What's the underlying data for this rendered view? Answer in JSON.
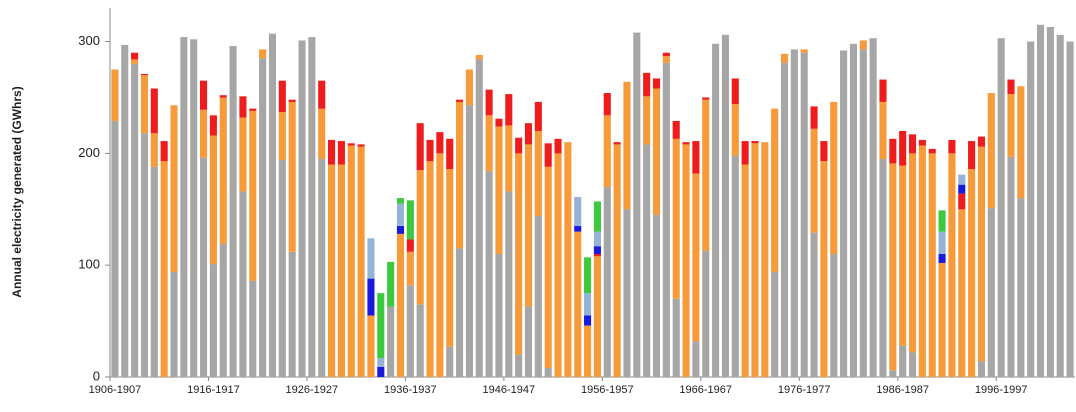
{
  "chart_data": {
    "type": "stacked_bar",
    "y_label": "Annual electricity generated (GWhrs)",
    "categories": [
      "1906-1907",
      null,
      null,
      null,
      null,
      null,
      null,
      null,
      null,
      null,
      "1916-1917",
      null,
      null,
      null,
      null,
      null,
      null,
      null,
      null,
      null,
      "1926-1927",
      null,
      null,
      null,
      null,
      null,
      null,
      null,
      null,
      null,
      "1936-1937",
      null,
      null,
      null,
      null,
      null,
      null,
      null,
      null,
      null,
      "1946-1947",
      null,
      null,
      null,
      null,
      null,
      null,
      null,
      null,
      null,
      "1956-1957",
      null,
      null,
      null,
      null,
      null,
      null,
      null,
      null,
      null,
      "1966-1967",
      null,
      null,
      null,
      null,
      null,
      null,
      null,
      null,
      null,
      "1976-1977",
      null,
      null,
      null,
      null,
      null,
      null,
      null,
      null,
      null,
      "1986-1987",
      null,
      null,
      null,
      null,
      null,
      null,
      null,
      null,
      null,
      "1996-1997",
      null,
      null,
      null,
      null,
      null,
      null,
      null
    ],
    "series": [
      {
        "color": "#a6a6a6",
        "values": [
          229,
          297,
          280,
          218,
          188,
          0,
          94,
          304,
          302,
          196,
          101,
          119,
          296,
          166,
          86,
          285,
          307,
          194,
          112,
          301,
          304,
          195,
          0,
          0,
          0,
          0,
          0,
          0,
          63,
          0,
          82,
          65,
          0,
          0,
          27,
          115,
          243,
          284,
          184,
          110,
          166,
          20,
          63,
          144,
          8,
          0,
          0,
          0,
          0,
          0,
          170,
          0,
          150,
          308,
          208,
          145,
          281,
          70,
          0,
          32,
          113,
          298,
          306,
          198,
          0,
          0,
          0,
          94,
          281,
          293,
          290,
          129,
          0,
          110,
          292,
          298,
          293,
          303,
          195,
          6,
          28,
          22,
          0,
          0,
          0,
          0,
          0,
          0,
          14,
          151,
          303,
          197,
          160,
          300,
          315,
          313,
          306,
          300
        ]
      },
      {
        "color": "#f79a3a",
        "values": [
          46,
          0,
          4,
          52,
          30,
          193,
          149,
          0,
          0,
          43,
          115,
          131,
          0,
          66,
          152,
          8,
          0,
          43,
          134,
          0,
          0,
          45,
          190,
          190,
          207,
          206,
          55,
          0,
          0,
          128,
          30,
          120,
          193,
          200,
          159,
          131,
          32,
          4,
          50,
          114,
          59,
          180,
          145,
          76,
          180,
          200,
          210,
          130,
          46,
          108,
          64,
          208,
          114,
          0,
          43,
          113,
          6,
          143,
          208,
          150,
          135,
          0,
          0,
          46,
          190,
          209,
          210,
          146,
          8,
          0,
          3,
          93,
          193,
          136,
          0,
          0,
          8,
          0,
          51,
          185,
          161,
          178,
          207,
          200,
          102,
          200,
          150,
          186,
          192,
          103,
          0,
          56,
          100,
          0,
          0,
          0,
          0,
          0
        ]
      },
      {
        "color": "#ee1c1c",
        "values": [
          0,
          0,
          6,
          1,
          40,
          18,
          0,
          0,
          0,
          26,
          18,
          2,
          0,
          19,
          2,
          0,
          0,
          28,
          2,
          0,
          0,
          25,
          22,
          21,
          2,
          2,
          0,
          0,
          0,
          0,
          11,
          42,
          19,
          19,
          27,
          2,
          0,
          0,
          23,
          7,
          28,
          14,
          19,
          26,
          21,
          13,
          0,
          0,
          0,
          2,
          20,
          2,
          0,
          0,
          21,
          9,
          3,
          16,
          2,
          29,
          2,
          0,
          0,
          23,
          21,
          2,
          0,
          0,
          0,
          0,
          0,
          20,
          18,
          0,
          0,
          0,
          0,
          0,
          20,
          22,
          31,
          17,
          5,
          4,
          0,
          12,
          14,
          25,
          9,
          0,
          0,
          13,
          0,
          0,
          0,
          0,
          0,
          0
        ]
      },
      {
        "color": "#1a1adb",
        "values": [
          0,
          0,
          0,
          0,
          0,
          0,
          0,
          0,
          0,
          0,
          0,
          0,
          0,
          0,
          0,
          0,
          0,
          0,
          0,
          0,
          0,
          0,
          0,
          0,
          0,
          0,
          33,
          9,
          0,
          7,
          0,
          0,
          0,
          0,
          0,
          0,
          0,
          0,
          0,
          0,
          0,
          0,
          0,
          0,
          0,
          0,
          0,
          5,
          9,
          7,
          0,
          0,
          0,
          0,
          0,
          0,
          0,
          0,
          0,
          0,
          0,
          0,
          0,
          0,
          0,
          0,
          0,
          0,
          0,
          0,
          0,
          0,
          0,
          0,
          0,
          0,
          0,
          0,
          0,
          0,
          0,
          0,
          0,
          0,
          8,
          0,
          8,
          0,
          0,
          0,
          0,
          0,
          0,
          0,
          0,
          0,
          0,
          0
        ]
      },
      {
        "color": "#95b3d7",
        "values": [
          0,
          0,
          0,
          0,
          0,
          0,
          0,
          0,
          0,
          0,
          0,
          0,
          0,
          0,
          0,
          0,
          0,
          0,
          0,
          0,
          0,
          0,
          0,
          0,
          0,
          0,
          36,
          8,
          0,
          20,
          0,
          0,
          0,
          0,
          0,
          0,
          0,
          0,
          0,
          0,
          0,
          0,
          0,
          0,
          0,
          0,
          0,
          26,
          20,
          13,
          0,
          0,
          0,
          0,
          0,
          0,
          0,
          0,
          0,
          0,
          0,
          0,
          0,
          0,
          0,
          0,
          0,
          0,
          0,
          0,
          0,
          0,
          0,
          0,
          0,
          0,
          0,
          0,
          0,
          0,
          0,
          0,
          0,
          0,
          20,
          0,
          9,
          0,
          0,
          0,
          0,
          0,
          0,
          0,
          0,
          0,
          0,
          0
        ]
      },
      {
        "color": "#3ec83e",
        "values": [
          0,
          0,
          0,
          0,
          0,
          0,
          0,
          0,
          0,
          0,
          0,
          0,
          0,
          0,
          0,
          0,
          0,
          0,
          0,
          0,
          0,
          0,
          0,
          0,
          0,
          0,
          0,
          58,
          40,
          5,
          35,
          0,
          0,
          0,
          0,
          0,
          0,
          0,
          0,
          0,
          0,
          0,
          0,
          0,
          0,
          0,
          0,
          0,
          32,
          27,
          0,
          0,
          0,
          0,
          0,
          0,
          0,
          0,
          0,
          0,
          0,
          0,
          0,
          0,
          0,
          0,
          0,
          0,
          0,
          0,
          0,
          0,
          0,
          0,
          0,
          0,
          0,
          0,
          0,
          0,
          0,
          0,
          0,
          0,
          19,
          0,
          0,
          0,
          0,
          0,
          0,
          0,
          0,
          0,
          0,
          0,
          0,
          0
        ]
      }
    ],
    "ylim": [
      0,
      330
    ],
    "yticks": [
      0,
      100,
      200,
      300
    ],
    "grid": false
  }
}
